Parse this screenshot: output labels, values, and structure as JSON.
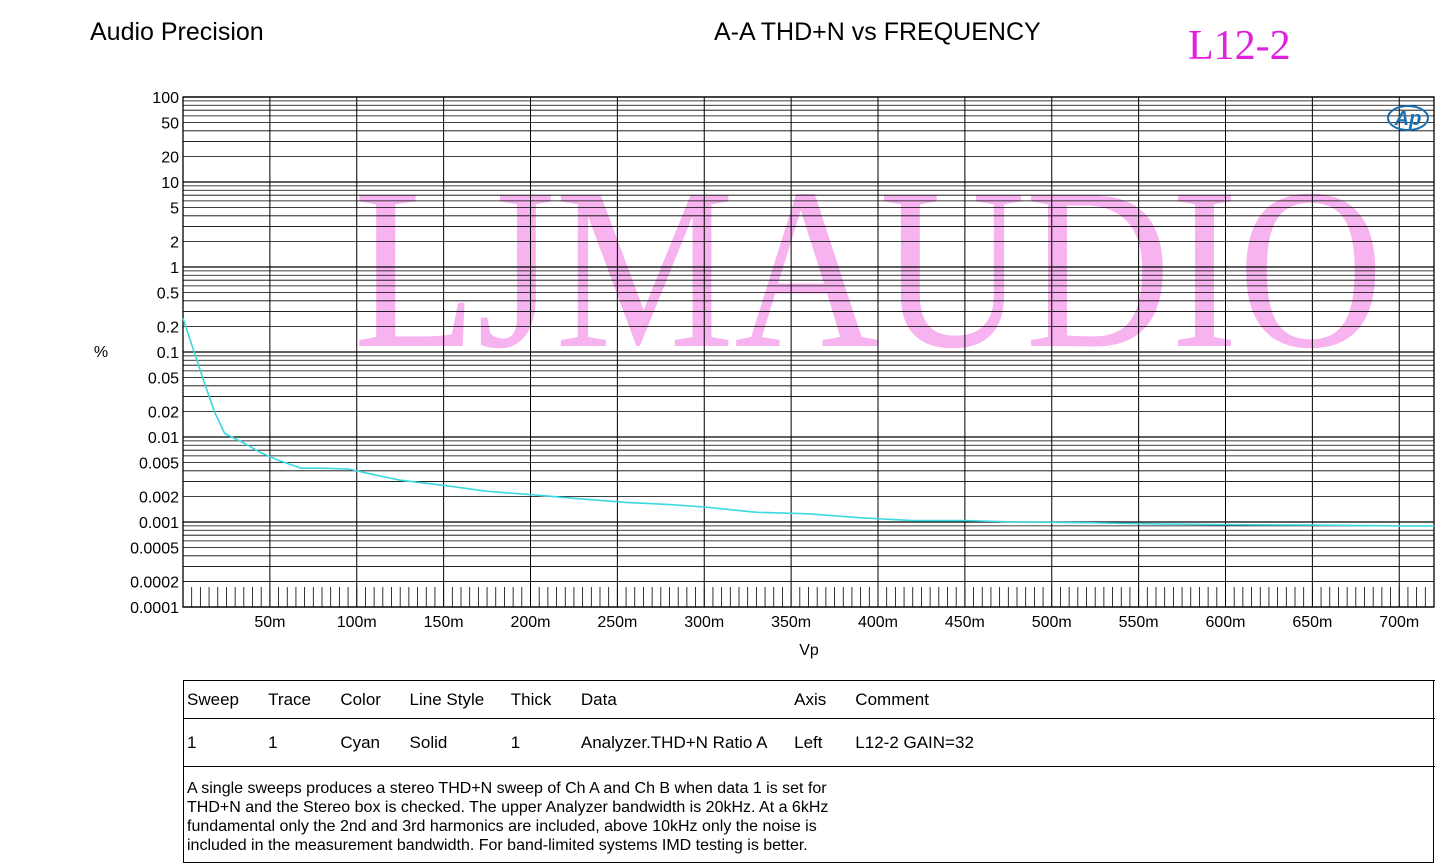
{
  "header": {
    "brand": "Audio Precision",
    "title": "A-A THD+N vs FREQUENCY",
    "tag": "L12-2",
    "tag_color": "#e020e0"
  },
  "watermark": {
    "text": "LJMAUDIO",
    "color": "#f7b3f0"
  },
  "logo": {
    "text": "Ap",
    "color": "#1a6fb0"
  },
  "chart_data": {
    "type": "line",
    "xlabel": "Vp",
    "ylabel": "%",
    "xscale": "linear",
    "yscale": "log",
    "xlim": [
      0,
      0.72
    ],
    "ylim": [
      0.0001,
      100
    ],
    "grid": true,
    "x_ticks": [
      {
        "v": 0.05,
        "label": "50m"
      },
      {
        "v": 0.1,
        "label": "100m"
      },
      {
        "v": 0.15,
        "label": "150m"
      },
      {
        "v": 0.2,
        "label": "200m"
      },
      {
        "v": 0.25,
        "label": "250m"
      },
      {
        "v": 0.3,
        "label": "300m"
      },
      {
        "v": 0.35,
        "label": "350m"
      },
      {
        "v": 0.4,
        "label": "400m"
      },
      {
        "v": 0.45,
        "label": "450m"
      },
      {
        "v": 0.5,
        "label": "500m"
      },
      {
        "v": 0.55,
        "label": "550m"
      },
      {
        "v": 0.6,
        "label": "600m"
      },
      {
        "v": 0.65,
        "label": "650m"
      },
      {
        "v": 0.7,
        "label": "700m"
      }
    ],
    "y_ticks": [
      {
        "v": 100,
        "label": "100"
      },
      {
        "v": 50,
        "label": "50"
      },
      {
        "v": 20,
        "label": "20"
      },
      {
        "v": 10,
        "label": "10"
      },
      {
        "v": 5,
        "label": "5"
      },
      {
        "v": 2,
        "label": "2"
      },
      {
        "v": 1,
        "label": "1"
      },
      {
        "v": 0.5,
        "label": "0.5"
      },
      {
        "v": 0.2,
        "label": "0.2"
      },
      {
        "v": 0.1,
        "label": "0.1"
      },
      {
        "v": 0.05,
        "label": "0.05"
      },
      {
        "v": 0.02,
        "label": "0.02"
      },
      {
        "v": 0.01,
        "label": "0.01"
      },
      {
        "v": 0.005,
        "label": "0.005"
      },
      {
        "v": 0.002,
        "label": "0.002"
      },
      {
        "v": 0.001,
        "label": "0.001"
      },
      {
        "v": 0.0005,
        "label": "0.0005"
      },
      {
        "v": 0.0002,
        "label": "0.0002"
      },
      {
        "v": 0.0001,
        "label": "0.0001"
      }
    ],
    "series": [
      {
        "color": "#3cd8e0",
        "points": [
          [
            0.0,
            0.25
          ],
          [
            0.01,
            0.06
          ],
          [
            0.018,
            0.02
          ],
          [
            0.024,
            0.011
          ],
          [
            0.035,
            0.0085
          ],
          [
            0.045,
            0.0065
          ],
          [
            0.055,
            0.0053
          ],
          [
            0.068,
            0.0043
          ],
          [
            0.08,
            0.0043
          ],
          [
            0.095,
            0.0042
          ],
          [
            0.11,
            0.0036
          ],
          [
            0.125,
            0.0031
          ],
          [
            0.15,
            0.0027
          ],
          [
            0.175,
            0.0023
          ],
          [
            0.2,
            0.0021
          ],
          [
            0.225,
            0.0019
          ],
          [
            0.255,
            0.0017
          ],
          [
            0.28,
            0.0016
          ],
          [
            0.3,
            0.0015
          ],
          [
            0.33,
            0.0013
          ],
          [
            0.36,
            0.00125
          ],
          [
            0.39,
            0.00112
          ],
          [
            0.42,
            0.00104
          ],
          [
            0.45,
            0.00104
          ],
          [
            0.48,
            0.001
          ],
          [
            0.52,
            0.00098
          ],
          [
            0.56,
            0.00095
          ],
          [
            0.6,
            0.00093
          ],
          [
            0.65,
            0.00092
          ],
          [
            0.7,
            0.0009
          ],
          [
            0.72,
            0.0009
          ]
        ]
      }
    ]
  },
  "legend_table": {
    "headers": [
      "Sweep",
      "Trace",
      "Color",
      "Line Style",
      "Thick",
      "Data",
      "Axis",
      "Comment"
    ],
    "rows": [
      [
        "1",
        "1",
        "Cyan",
        "Solid",
        "1",
        "Analyzer.THD+N Ratio A",
        "Left",
        "L12-2 GAIN=32"
      ]
    ]
  },
  "note": {
    "lines": [
      "A single sweeps produces a stereo THD+N sweep of Ch A and Ch B when data 1 is set for",
      "THD+N and the Stereo box is checked.  The upper Analyzer bandwidth is 20kHz.  At a 6kHz",
      "fundamental only the 2nd and 3rd harmonics are included, above 10kHz only the noise is",
      "included in the measurement bandwidth.  For band-limited systems IMD testing is better."
    ]
  }
}
